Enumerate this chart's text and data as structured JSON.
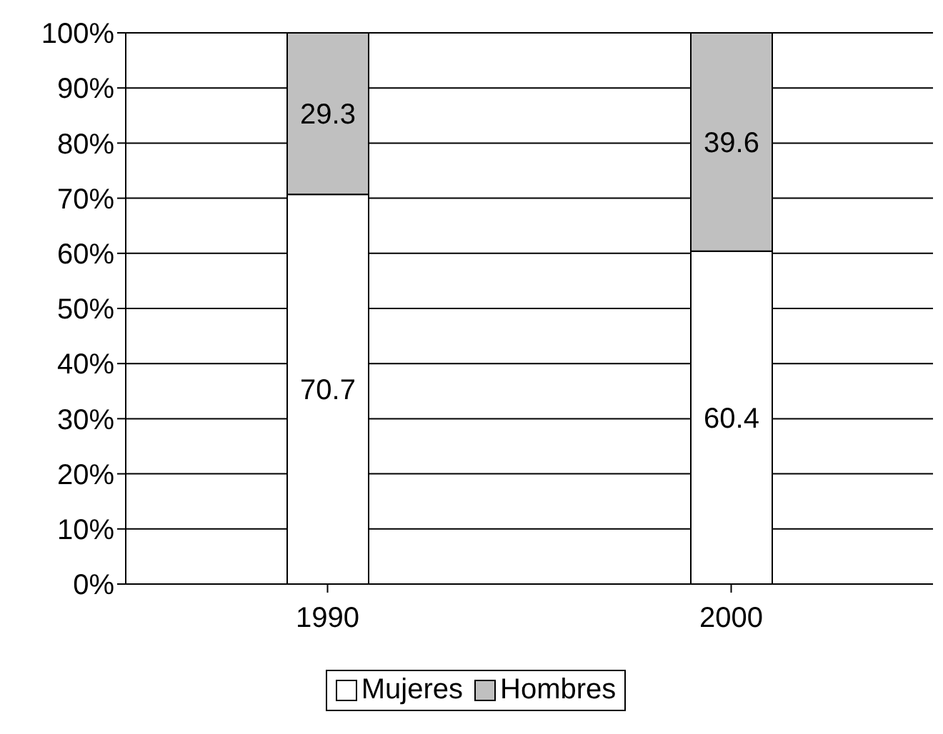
{
  "chart_data": {
    "type": "bar",
    "stacked": true,
    "categories": [
      "1990",
      "2000"
    ],
    "series": [
      {
        "name": "Mujeres",
        "color": "#ffffff",
        "values": [
          70.7,
          60.4
        ]
      },
      {
        "name": "Hombres",
        "color": "#c0c0c0",
        "values": [
          29.3,
          39.6
        ]
      }
    ],
    "ylim": [
      0,
      100
    ],
    "yticks": [
      {
        "value": 0,
        "label": "0%"
      },
      {
        "value": 10,
        "label": "10%"
      },
      {
        "value": 20,
        "label": "20%"
      },
      {
        "value": 30,
        "label": "30%"
      },
      {
        "value": 40,
        "label": "40%"
      },
      {
        "value": 50,
        "label": "50%"
      },
      {
        "value": 60,
        "label": "60%"
      },
      {
        "value": 70,
        "label": "70%"
      },
      {
        "value": 80,
        "label": "80%"
      },
      {
        "value": 90,
        "label": "90%"
      },
      {
        "value": 100,
        "label": "100%"
      }
    ],
    "grid": "y",
    "legend": "bottom",
    "data_labels": true
  }
}
